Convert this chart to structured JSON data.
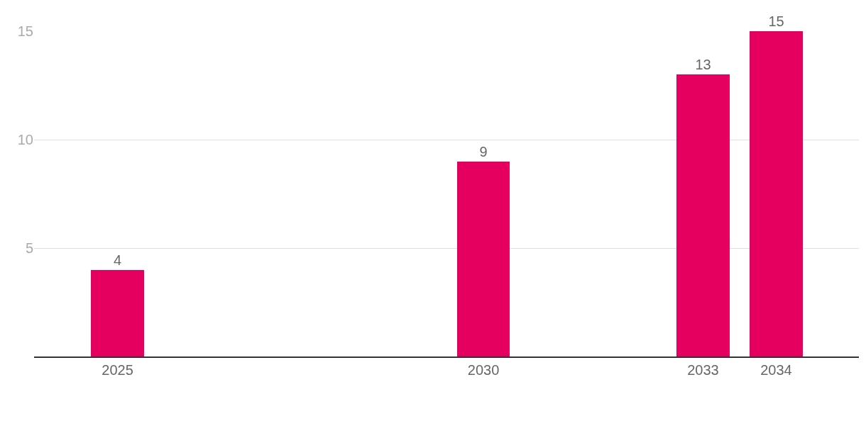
{
  "chart_data": {
    "type": "bar",
    "x": [
      2025,
      2030,
      2033,
      2034
    ],
    "values": [
      4,
      9,
      13,
      15
    ],
    "color": "#e5005f",
    "xlim": [
      2023.86,
      2035.13
    ],
    "xticks": [
      2025,
      2030,
      2033,
      2034
    ],
    "ylim": [
      0,
      15
    ],
    "yticks": [
      5,
      10,
      15
    ],
    "grid": "y",
    "data_labels": true,
    "legend": false
  }
}
